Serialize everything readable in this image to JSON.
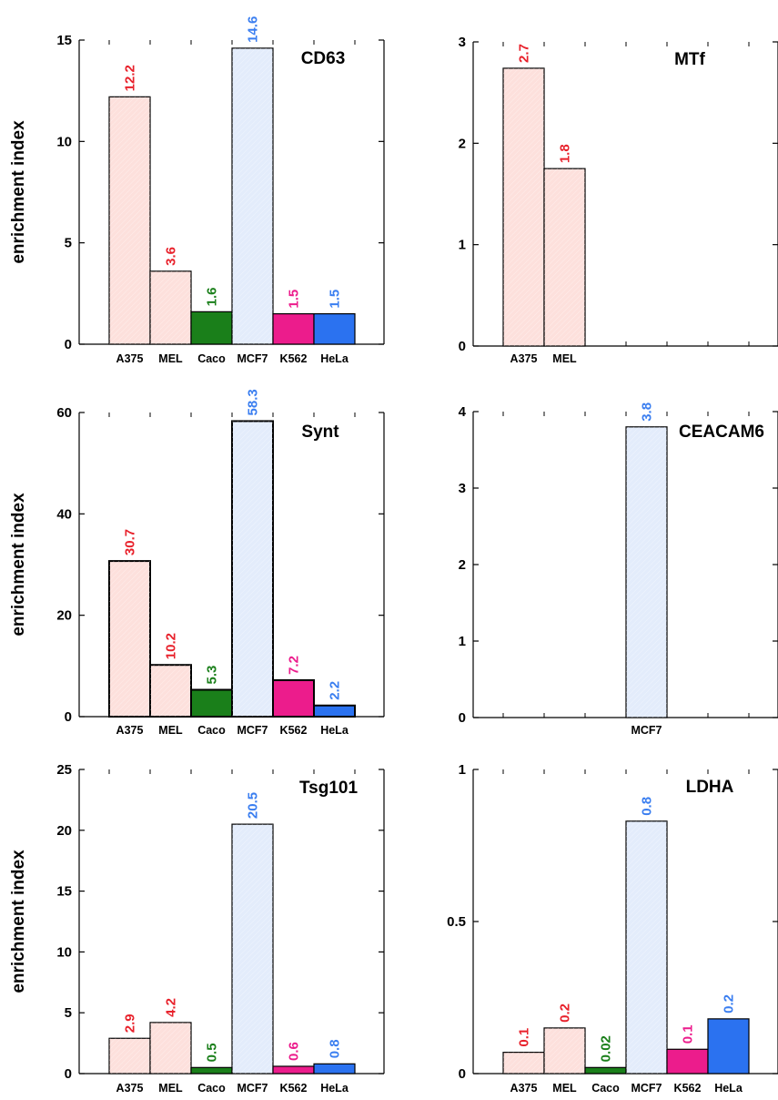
{
  "chart_data": [
    {
      "type": "bar",
      "title": "CD63",
      "ylabel": "enrichment index",
      "ylim": [
        0,
        15
      ],
      "yticks": [
        0,
        5,
        10,
        15
      ],
      "categories": [
        "A375",
        "MEL",
        "Caco",
        "MCF7",
        "K562",
        "HeLa"
      ],
      "values": [
        12.2,
        3.6,
        1.6,
        14.6,
        1.5,
        1.5
      ],
      "value_labels": [
        "12.2",
        "3.6",
        "1.6",
        "14.6",
        "1.5",
        "1.5"
      ],
      "ytick_labels": [
        "0",
        "5",
        "10",
        "15"
      ]
    },
    {
      "type": "bar",
      "title": "MTf",
      "ylabel": "",
      "ylim": [
        0,
        3
      ],
      "yticks": [
        0,
        1,
        2,
        3
      ],
      "categories": [
        "A375",
        "MEL",
        "",
        "",
        "",
        ""
      ],
      "values": [
        2.74,
        1.75,
        null,
        null,
        null,
        null
      ],
      "value_labels": [
        "2.7",
        "1.8",
        "",
        "",
        "",
        ""
      ],
      "ytick_labels": [
        "0",
        "1",
        "2",
        "3"
      ]
    },
    {
      "type": "bar",
      "title": "Synt",
      "ylabel": "enrichment index",
      "ylim": [
        0,
        60
      ],
      "yticks": [
        0,
        20,
        40,
        60
      ],
      "categories": [
        "A375",
        "MEL",
        "Caco",
        "MCF7",
        "K562",
        "HeLa"
      ],
      "values": [
        30.7,
        10.2,
        5.3,
        58.3,
        7.2,
        2.2
      ],
      "value_labels": [
        "30.7",
        "10.2",
        "5.3",
        "58.3",
        "7.2",
        "2.2"
      ],
      "ytick_labels": [
        "0",
        "20",
        "40",
        "60"
      ]
    },
    {
      "type": "bar",
      "title": "CEACAM6",
      "ylabel": "",
      "ylim": [
        0,
        4
      ],
      "yticks": [
        0,
        1,
        2,
        3,
        4
      ],
      "categories": [
        "",
        "",
        "",
        "MCF7",
        "",
        ""
      ],
      "values": [
        null,
        null,
        null,
        3.8,
        null,
        null
      ],
      "value_labels": [
        "",
        "",
        "",
        "3.8",
        "",
        ""
      ],
      "ytick_labels": [
        "0",
        "1",
        "2",
        "3",
        "4"
      ]
    },
    {
      "type": "bar",
      "title": "Tsg101",
      "ylabel": "enrichment index",
      "ylim": [
        0,
        25
      ],
      "yticks": [
        0,
        5,
        10,
        15,
        20,
        25
      ],
      "categories": [
        "A375",
        "MEL",
        "Caco",
        "MCF7",
        "K562",
        "HeLa"
      ],
      "values": [
        2.9,
        4.2,
        0.5,
        20.5,
        0.6,
        0.8
      ],
      "value_labels": [
        "2.9",
        "4.2",
        "0.5",
        "20.5",
        "0.6",
        "0.8"
      ],
      "ytick_labels": [
        "0",
        "5",
        "10",
        "15",
        "20",
        "25"
      ]
    },
    {
      "type": "bar",
      "title": "LDHA",
      "ylabel": "",
      "ylim": [
        0,
        1
      ],
      "yticks": [
        0,
        0.5,
        1
      ],
      "categories": [
        "A375",
        "MEL",
        "Caco",
        "MCF7",
        "K562",
        "HeLa"
      ],
      "values": [
        0.07,
        0.15,
        0.02,
        0.83,
        0.08,
        0.18
      ],
      "value_labels": [
        "0.1",
        "0.2",
        "0.02",
        "0.8",
        "0.1",
        "0.2"
      ],
      "ytick_labels": [
        "0",
        "0.5",
        "1"
      ]
    }
  ],
  "bar_colors": [
    "#fde0dc",
    "#fde0dc",
    "#1a7f1a",
    "#e3ecfb",
    "#ec1c8c",
    "#2b72f0"
  ],
  "label_colors": [
    "#e8212b",
    "#e8212b",
    "#1a7f1a",
    "#3a7ef0",
    "#ec1c8c",
    "#3a7ef0"
  ]
}
